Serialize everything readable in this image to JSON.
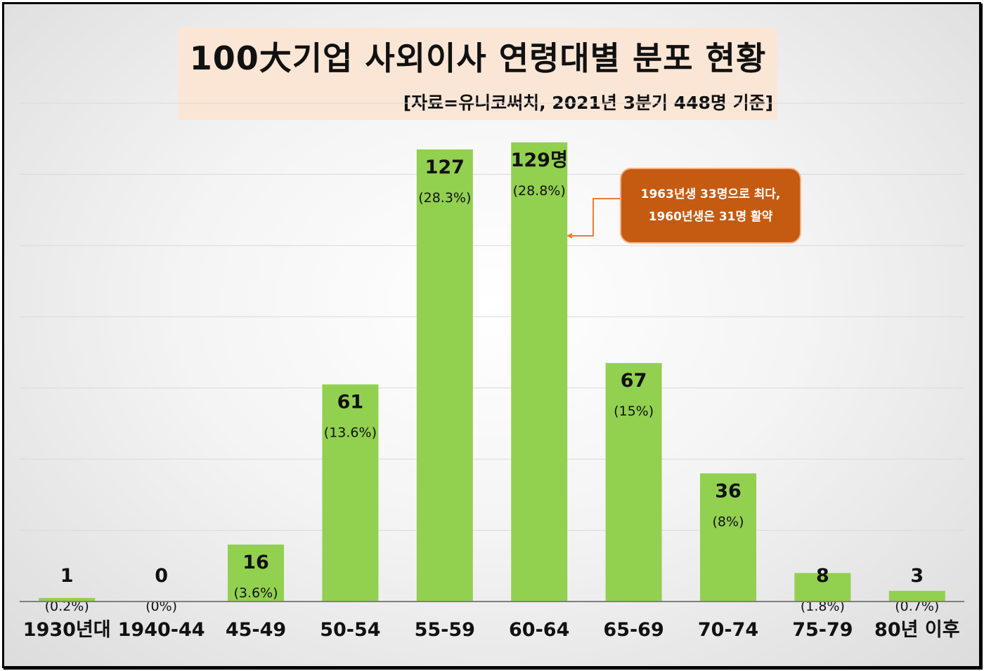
{
  "title": "100大기업 사외이사 연령대별 분포 현황",
  "subtitle": "[자료=유니코써치, 2021년 3분기 448명 기준]",
  "callout": {
    "line1": "1963년생 33명으로 최다,",
    "line2": "1960년생은 31명 활약"
  },
  "colors": {
    "bar": "#92d050",
    "callout": "#c55a11",
    "title_bg": "#fbe6d6"
  },
  "chart_data": {
    "type": "bar",
    "title": "100大기업 사외이사 연령대별 분포 현황",
    "categories": [
      "1930년대",
      "1940-44",
      "45-49",
      "50-54",
      "55-59",
      "60-64",
      "65-69",
      "70-74",
      "75-79",
      "80년 이후"
    ],
    "values": [
      1,
      0,
      16,
      61,
      127,
      129,
      67,
      36,
      8,
      3
    ],
    "value_labels": [
      "1",
      "0",
      "16",
      "61",
      "127",
      "129명",
      "67",
      "36",
      "8",
      "3"
    ],
    "percent_labels": [
      "(0.2%)",
      "(0%)",
      "(3.6%)",
      "(13.6%)",
      "(28.3%)",
      "(28.8%)",
      "(15%)",
      "(8%)",
      "(1.8%)",
      "(0.7%)"
    ],
    "ylim": [
      0,
      140
    ],
    "grid": true,
    "legend": "none",
    "xlabel": "",
    "ylabel": ""
  }
}
